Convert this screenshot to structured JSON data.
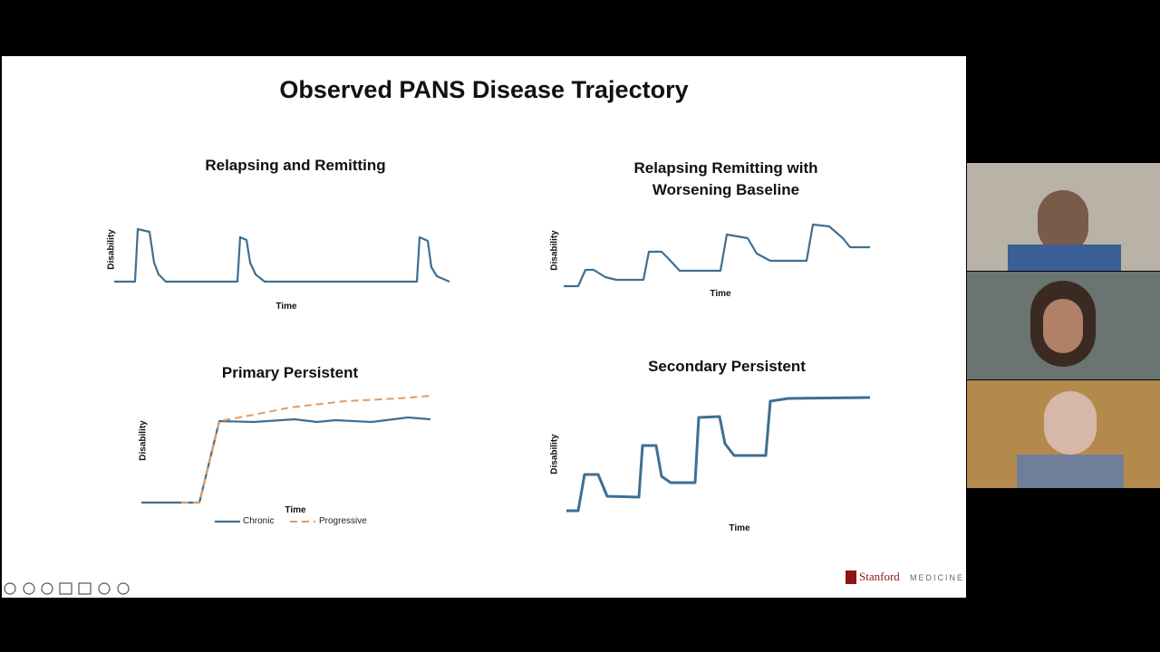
{
  "slide": {
    "title": "Observed PANS Disease Trajectory",
    "panels": [
      {
        "title": "Relapsing and Remitting",
        "y_label": "Disability",
        "x_label": "Time"
      },
      {
        "title": "Relapsing Remitting with Worsening Baseline",
        "y_label": "Disability",
        "x_label": "Time"
      },
      {
        "title": "Primary Persistent",
        "y_label": "Disability",
        "x_label": "Time",
        "legend": [
          "Chronic",
          "Progressive"
        ]
      },
      {
        "title": "Secondary Persistent",
        "y_label": "Disability",
        "x_label": "Time"
      }
    ]
  },
  "logo": {
    "name": "Stanford",
    "unit": "MEDICINE"
  }
}
